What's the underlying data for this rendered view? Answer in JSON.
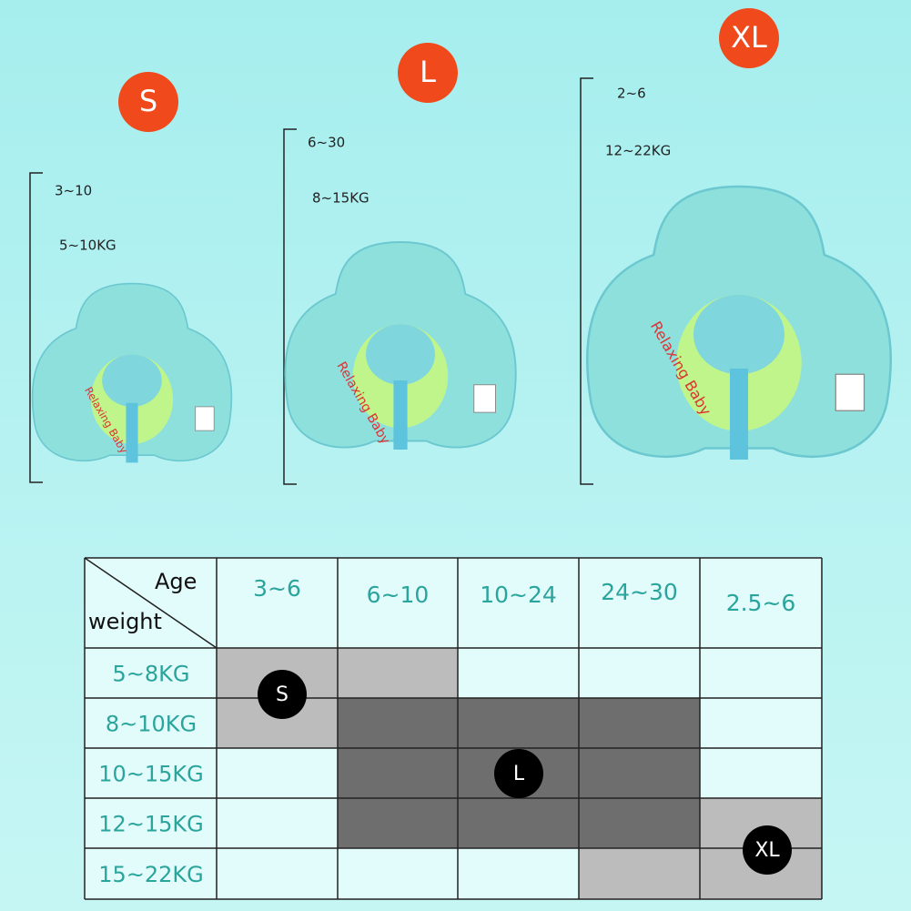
{
  "products": [
    {
      "size": "S",
      "age": "3~10",
      "weight": "5~10KG",
      "brand": "Relaxing Baby"
    },
    {
      "size": "L",
      "age": "6~30",
      "weight": "8~15KG",
      "brand": "Relaxing Baby"
    },
    {
      "size": "XL",
      "age": "2~6",
      "weight": "12~22KG",
      "brand": "Relaxing Baby"
    }
  ],
  "table": {
    "corner_top": "Age",
    "corner_bottom": "weight",
    "columns": [
      "3~6",
      "6~10",
      "10~24",
      "24~30",
      "2.5~6"
    ],
    "rows": [
      "5~8KG",
      "8~10KG",
      "10~15KG",
      "12~15KG",
      "15~22KG"
    ],
    "badges": [
      "S",
      "L",
      "XL"
    ]
  }
}
